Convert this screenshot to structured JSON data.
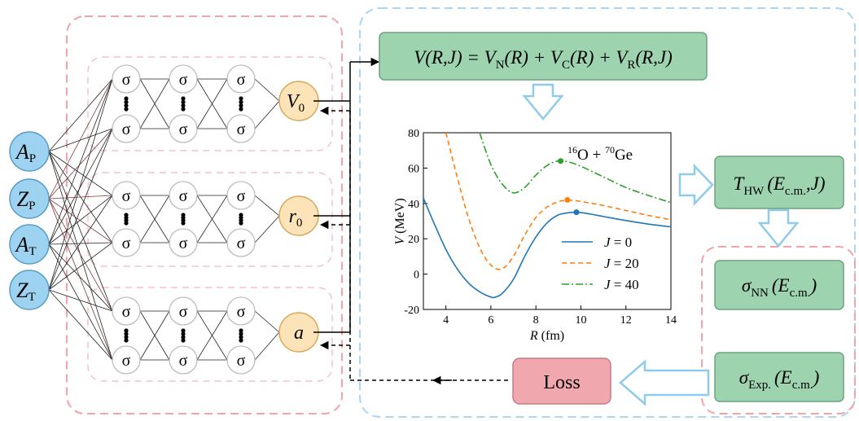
{
  "colors": {
    "input_fill": "#9dd3f0",
    "input_stroke": "#5a9cc5",
    "output_fill": "#fde4b8",
    "output_stroke": "#d9a85c",
    "green_fill": "#9ed3b0",
    "green_stroke": "#6aa47d",
    "loss_fill": "#f0a7ad",
    "pink_dash": "#f2a3ad",
    "blue_dash": "#a9d6f0",
    "arrow_outline": "#8fcbeb",
    "curve_j0": "#1f77b4",
    "curve_j20": "#ff7f0e",
    "curve_j40": "#2ca02c"
  },
  "inputs": [
    {
      "main": "A",
      "sub": "P"
    },
    {
      "main": "Z",
      "sub": "P"
    },
    {
      "main": "A",
      "sub": "T"
    },
    {
      "main": "Z",
      "sub": "T"
    }
  ],
  "neuron_symbol": "σ",
  "outputs": [
    {
      "main": "V",
      "sub": "0"
    },
    {
      "main": "r",
      "sub": "0"
    },
    {
      "main": "a",
      "sub": ""
    }
  ],
  "formula": {
    "parts": [
      "V(R,J) = V",
      "N",
      "(R) + V",
      "C",
      "(R) + V",
      "R",
      "(R,J)"
    ]
  },
  "thw_box": {
    "main": "T",
    "sub": "HW",
    "arg": "(E",
    "arg_sub": "c.m.",
    "tail": ",J)"
  },
  "snn_box": {
    "main": "σ",
    "sub": "NN",
    "arg": "(E",
    "arg_sub": "c.m.",
    "tail": ")"
  },
  "sexp_box": {
    "main": "σ",
    "sub": "Exp.",
    "arg": "(E",
    "arg_sub": "c.m.",
    "tail": ")"
  },
  "loss_label": "Loss",
  "chart_data": {
    "type": "line",
    "annotation": {
      "pre1": "16",
      "a": "O + ",
      "pre2": "70",
      "b": "Ge"
    },
    "xlabel": {
      "sym": "R",
      "unit": " (fm)"
    },
    "ylabel": {
      "sym": "V",
      "unit": " (MeV)"
    },
    "xlim": [
      3,
      14
    ],
    "ylim": [
      -20,
      80
    ],
    "xticks": [
      "4",
      "6",
      "8",
      "10",
      "12",
      "14"
    ],
    "yticks": [
      "-20",
      "0",
      "20",
      "40",
      "60",
      "80"
    ],
    "legend_position": "lower-right",
    "series": [
      {
        "name": "J = 0",
        "style": "solid",
        "x": [
          3.0,
          3.5,
          4.0,
          4.5,
          5.0,
          5.5,
          6.0,
          6.2,
          6.5,
          7.0,
          7.5,
          8.0,
          8.5,
          9.0,
          9.5,
          9.8,
          10.0,
          10.5,
          11.0,
          12.0,
          13.0,
          14.0
        ],
        "y": [
          43,
          28,
          14,
          3,
          -5,
          -10,
          -13,
          -13,
          -11,
          -3,
          10,
          21,
          29,
          33.5,
          34.8,
          35,
          34.8,
          33.8,
          32.6,
          30.3,
          28.3,
          26.7
        ],
        "peak": {
          "x": 9.8,
          "y": 35
        }
      },
      {
        "name": "J = 20",
        "style": "dashed",
        "x": [
          4.0,
          4.5,
          5.0,
          5.5,
          6.0,
          6.5,
          7.0,
          7.5,
          8.0,
          8.5,
          9.0,
          9.4,
          9.8,
          10.5,
          11.0,
          12.0,
          13.0,
          14.0
        ],
        "y": [
          80,
          55,
          32,
          15,
          5,
          3,
          10,
          22,
          32,
          38,
          41,
          41.8,
          41.5,
          40,
          38.8,
          36,
          33.2,
          30.8
        ],
        "peak": {
          "x": 9.4,
          "y": 42
        }
      },
      {
        "name": "J = 40",
        "style": "dashdot",
        "x": [
          5.5,
          6.0,
          6.5,
          7.0,
          7.5,
          8.0,
          8.5,
          9.0,
          9.5,
          10.0,
          11.0,
          12.0,
          13.0,
          14.0
        ],
        "y": [
          80,
          62,
          51,
          46,
          49,
          56,
          61.5,
          64,
          63.3,
          61,
          55,
          49,
          44.5,
          40.5
        ],
        "peak": {
          "x": 9.1,
          "y": 64
        }
      }
    ]
  }
}
